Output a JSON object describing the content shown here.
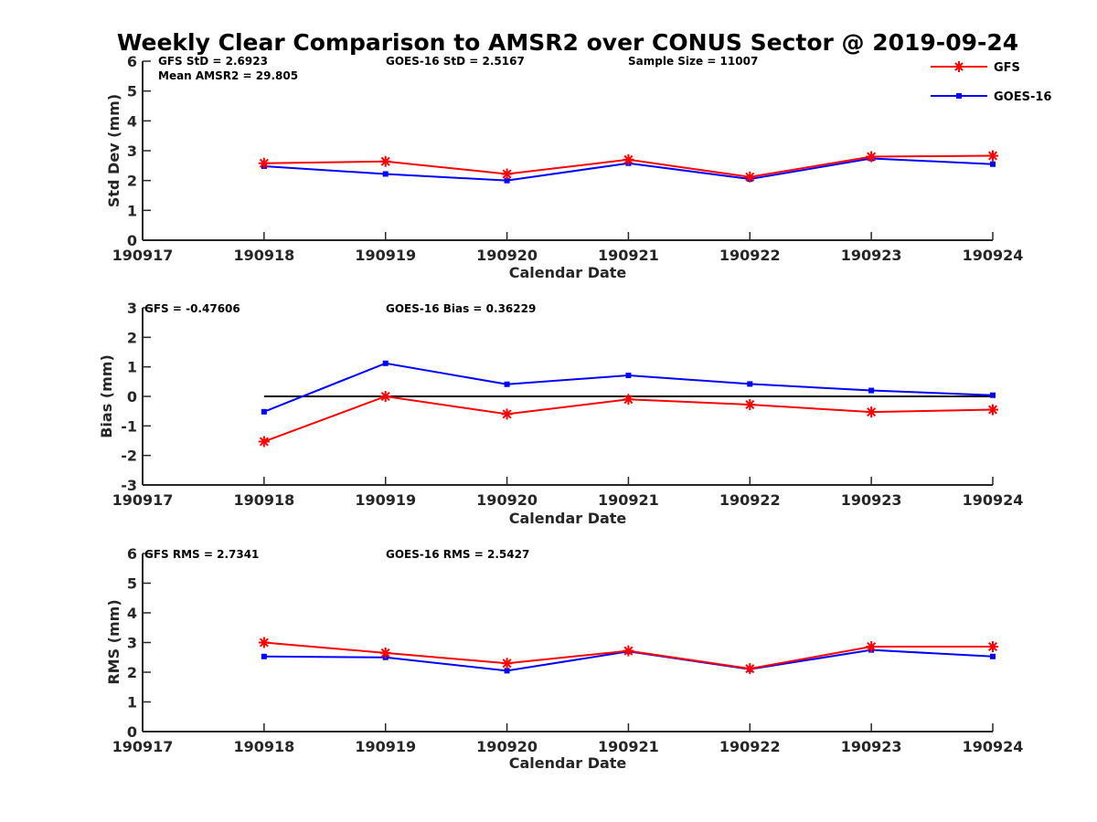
{
  "title": "Weekly Clear Comparison to AMSR2 over CONUS Sector @ 2019-09-24",
  "legend": {
    "placement": "top-right",
    "entries": [
      {
        "label": "GFS",
        "color": "#ff0000",
        "marker": "asterisk"
      },
      {
        "label": "GOES-16",
        "color": "#0000ff",
        "marker": "square"
      }
    ]
  },
  "chart_data": [
    {
      "type": "line",
      "xlabel": "Calendar Date",
      "ylabel": "Std Dev (mm)",
      "x": [
        "190917",
        "190918",
        "190919",
        "190920",
        "190921",
        "190922",
        "190923",
        "190924"
      ],
      "ylim": [
        0,
        6
      ],
      "yticks": [
        "0",
        "1",
        "2",
        "3",
        "4",
        "5",
        "6"
      ],
      "annotations": [
        "GFS StD = 2.6923",
        "GOES-16 StD = 2.5167",
        "Sample Size = 11007",
        "Mean AMSR2 = 29.805"
      ],
      "series": [
        {
          "name": "GFS",
          "color": "#ff0000",
          "x": [
            "190918",
            "190919",
            "190920",
            "190921",
            "190922",
            "190923",
            "190924"
          ],
          "values": [
            2.58,
            2.64,
            2.22,
            2.7,
            2.12,
            2.8,
            2.83
          ]
        },
        {
          "name": "GOES-16",
          "color": "#0000ff",
          "x": [
            "190918",
            "190919",
            "190920",
            "190921",
            "190922",
            "190923",
            "190924"
          ],
          "values": [
            2.48,
            2.22,
            2.0,
            2.58,
            2.05,
            2.74,
            2.55
          ]
        }
      ]
    },
    {
      "type": "line",
      "xlabel": "Calendar Date",
      "ylabel": "Bias (mm)",
      "x": [
        "190917",
        "190918",
        "190919",
        "190920",
        "190921",
        "190922",
        "190923",
        "190924"
      ],
      "ylim": [
        -3,
        3
      ],
      "yticks": [
        "-3",
        "-2",
        "-1",
        "0",
        "1",
        "2",
        "3"
      ],
      "zero_line": true,
      "annotations": [
        "GFS = -0.47606",
        "GOES-16 Bias  = 0.36229"
      ],
      "series": [
        {
          "name": "GFS",
          "color": "#ff0000",
          "x": [
            "190918",
            "190919",
            "190920",
            "190921",
            "190922",
            "190923",
            "190924"
          ],
          "values": [
            -1.53,
            0.0,
            -0.6,
            -0.1,
            -0.28,
            -0.53,
            -0.45
          ]
        },
        {
          "name": "GOES-16",
          "color": "#0000ff",
          "x": [
            "190918",
            "190919",
            "190920",
            "190921",
            "190922",
            "190923",
            "190924"
          ],
          "values": [
            -0.52,
            1.12,
            0.41,
            0.71,
            0.42,
            0.2,
            0.04
          ]
        }
      ]
    },
    {
      "type": "line",
      "xlabel": "Calendar Date",
      "ylabel": "RMS (mm)",
      "x": [
        "190917",
        "190918",
        "190919",
        "190920",
        "190921",
        "190922",
        "190923",
        "190924"
      ],
      "ylim": [
        0,
        6
      ],
      "yticks": [
        "0",
        "1",
        "2",
        "3",
        "4",
        "5",
        "6"
      ],
      "annotations": [
        "GFS RMS = 2.7341",
        "GOES-16 RMS = 2.5427"
      ],
      "series": [
        {
          "name": "GFS",
          "color": "#ff0000",
          "x": [
            "190918",
            "190919",
            "190920",
            "190921",
            "190922",
            "190923",
            "190924"
          ],
          "values": [
            3.0,
            2.65,
            2.3,
            2.72,
            2.12,
            2.86,
            2.86
          ]
        },
        {
          "name": "GOES-16",
          "color": "#0000ff",
          "x": [
            "190918",
            "190919",
            "190920",
            "190921",
            "190922",
            "190923",
            "190924"
          ],
          "values": [
            2.53,
            2.5,
            2.05,
            2.7,
            2.1,
            2.75,
            2.53
          ]
        }
      ]
    }
  ]
}
